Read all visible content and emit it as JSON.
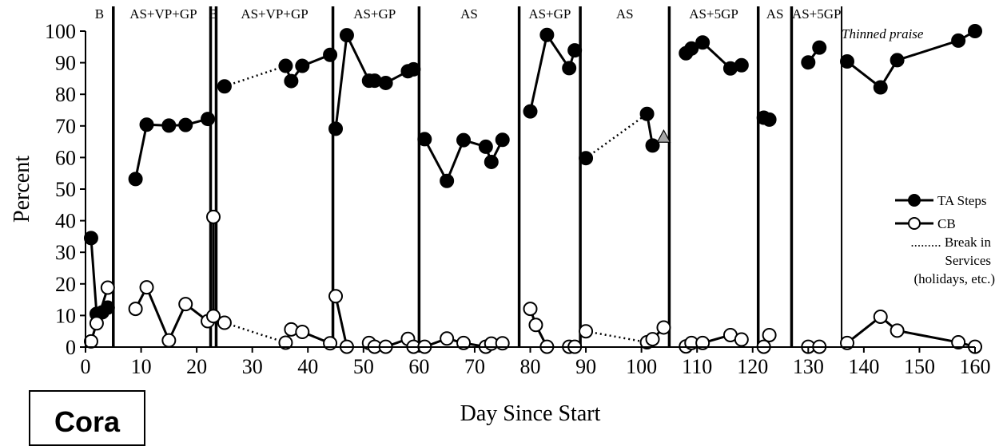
{
  "subject_label": "Cora",
  "chart_data": {
    "type": "line",
    "title": "",
    "xlabel": "Day Since Start",
    "ylabel": "Percent",
    "xlim": [
      0,
      160
    ],
    "ylim": [
      0,
      100
    ],
    "x_ticks": [
      0,
      10,
      20,
      30,
      40,
      50,
      60,
      70,
      80,
      90,
      100,
      110,
      120,
      130,
      140,
      150,
      160
    ],
    "y_ticks": [
      0,
      10,
      20,
      30,
      40,
      50,
      60,
      70,
      80,
      90,
      100
    ],
    "grid": false,
    "legend_position": "right",
    "legend": [
      {
        "marker": "filled-circle",
        "label": "TA Steps"
      },
      {
        "marker": "open-circle",
        "label": "CB"
      },
      {
        "marker": "dotted-line",
        "label_lines": [
          ".........  Break in",
          "Services",
          "(holidays, etc.)"
        ]
      }
    ],
    "phase_lines": [
      5,
      22.5,
      23.5,
      44.5,
      60,
      78,
      89,
      105,
      121,
      127,
      136
    ],
    "phase_line_thin": [
      136
    ],
    "phase_labels": [
      {
        "x": 2.5,
        "text": "B"
      },
      {
        "x": 14,
        "text": "AS+VP+GP"
      },
      {
        "x": 23,
        "text": "B"
      },
      {
        "x": 34,
        "text": "AS+VP+GP"
      },
      {
        "x": 52,
        "text": "AS+GP"
      },
      {
        "x": 69,
        "text": "AS"
      },
      {
        "x": 83.5,
        "text": "AS+GP"
      },
      {
        "x": 97,
        "text": "AS"
      },
      {
        "x": 113,
        "text": "AS+5GP"
      },
      {
        "x": 124,
        "text": "AS"
      },
      {
        "x": 131.5,
        "text": "AS+5GP"
      }
    ],
    "annotation": "Thinned praise",
    "series": [
      {
        "name": "TA Steps",
        "marker": "filled-circle",
        "segments": [
          [
            [
              1,
              34.5
            ],
            [
              2,
              10.5
            ],
            [
              3,
              11
            ],
            [
              4,
              12.5
            ]
          ],
          [
            [
              9,
              53.2
            ],
            [
              11,
              70.4
            ],
            [
              15,
              70.1
            ],
            [
              18,
              70.3
            ],
            [
              22,
              72.2
            ]
          ],
          [
            [
              25,
              82.5
            ]
          ],
          [
            [
              36,
              89
            ],
            [
              37,
              84.2
            ],
            [
              39,
              89
            ],
            [
              44,
              92.5
            ]
          ],
          [
            [
              45,
              69.1
            ],
            [
              47,
              98.7
            ],
            [
              51,
              84.3
            ],
            [
              52,
              84.3
            ],
            [
              54,
              83.6
            ],
            [
              58,
              87.3
            ],
            [
              59,
              87.9
            ]
          ],
          [
            [
              61,
              65.8
            ],
            [
              65,
              52.6
            ],
            [
              68,
              65.5
            ],
            [
              72,
              63.4
            ],
            [
              73,
              58.6
            ],
            [
              75,
              65.6
            ]
          ],
          [
            [
              80,
              74.6
            ],
            [
              83,
              98.8
            ],
            [
              87,
              88.3
            ],
            [
              88,
              93.9
            ]
          ],
          [
            [
              90,
              59.8
            ]
          ],
          [
            [
              101,
              73.8
            ],
            [
              102,
              63.8
            ]
          ],
          [
            [
              108,
              93
            ],
            [
              109,
              94.5
            ],
            [
              111,
              96.4
            ],
            [
              116,
              88.2
            ],
            [
              118,
              89.2
            ]
          ],
          [
            [
              122,
              72.6
            ],
            [
              123,
              72
            ]
          ],
          [
            [
              130,
              90.1
            ],
            [
              132,
              94.8
            ]
          ],
          [
            [
              137,
              90.4
            ],
            [
              143,
              82.2
            ],
            [
              146,
              90.8
            ],
            [
              157,
              97
            ],
            [
              160,
              100
            ]
          ]
        ],
        "breaks": [
          [
            [
              25,
              82.5
            ],
            [
              36,
              89
            ]
          ],
          [
            [
              90,
              59.8
            ],
            [
              101,
              73.8
            ]
          ]
        ]
      },
      {
        "name": "CB",
        "marker": "open-circle",
        "segments": [
          [
            [
              1,
              1.8
            ],
            [
              2,
              7.5
            ],
            [
              4,
              18.8
            ]
          ],
          [
            [
              9,
              12.1
            ],
            [
              11,
              18.9
            ],
            [
              15,
              2.1
            ],
            [
              18,
              13.6
            ],
            [
              22,
              8.2
            ]
          ],
          [
            [
              23,
              41.2
            ],
            [
              23,
              9.8
            ]
          ],
          [
            [
              25,
              7.7
            ]
          ],
          [
            [
              36,
              1.4
            ],
            [
              37,
              5.6
            ],
            [
              39,
              4.8
            ],
            [
              44,
              1.2
            ]
          ],
          [
            [
              45,
              16.1
            ],
            [
              47,
              0.1
            ]
          ],
          [
            [
              51,
              1.3
            ],
            [
              52,
              0.1
            ],
            [
              54,
              0.1
            ],
            [
              58,
              2.6
            ],
            [
              59,
              0.1
            ]
          ],
          [
            [
              61,
              0.1
            ],
            [
              65,
              2.7
            ],
            [
              68,
              1.3
            ],
            [
              72,
              0.1
            ],
            [
              73,
              1.1
            ],
            [
              75,
              1.2
            ]
          ],
          [
            [
              80,
              12.1
            ],
            [
              81,
              7
            ],
            [
              83,
              0.1
            ]
          ],
          [
            [
              87,
              0.1
            ],
            [
              88,
              0.1
            ]
          ],
          [
            [
              90,
              5
            ]
          ],
          [
            [
              101,
              1.5
            ],
            [
              102,
              2.5
            ],
            [
              104,
              6.2
            ]
          ],
          [
            [
              108,
              0.2
            ],
            [
              109,
              1.3
            ],
            [
              111,
              1.3
            ],
            [
              116,
              3.8
            ],
            [
              118,
              2.4
            ]
          ],
          [
            [
              122,
              0.1
            ],
            [
              123,
              3.8
            ]
          ],
          [
            [
              130,
              0.1
            ],
            [
              132,
              0.1
            ]
          ],
          [
            [
              137,
              1.3
            ],
            [
              143,
              9.6
            ],
            [
              146,
              5.2
            ],
            [
              157,
              1.5
            ],
            [
              160,
              0.1
            ]
          ]
        ],
        "breaks": [
          [
            [
              25,
              7.7
            ],
            [
              36,
              1.4
            ]
          ],
          [
            [
              90,
              5
            ],
            [
              101,
              1.5
            ]
          ]
        ]
      },
      {
        "name": "",
        "marker": "gray-triangle",
        "points": [
          [
            104,
            66.6
          ]
        ]
      }
    ]
  }
}
